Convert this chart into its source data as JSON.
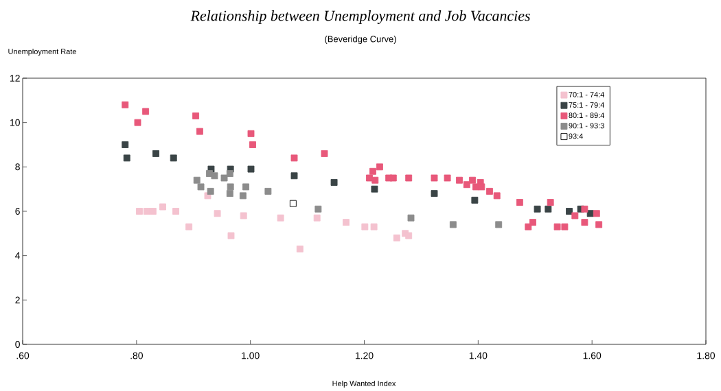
{
  "chart_data": {
    "type": "scatter",
    "title": "Relationship between Unemployment and Job Vacancies",
    "subtitle": "(Beveridge Curve)",
    "xlabel": "Help Wanted Index",
    "ylabel": "Unemployment Rate",
    "xlim": [
      0.6,
      1.8
    ],
    "xticks": [
      {
        "value": 0.6,
        "label": ".60"
      },
      {
        "value": 0.8,
        "label": ".80"
      },
      {
        "value": 1.0,
        "label": "1.00"
      },
      {
        "value": 1.2,
        "label": "1.20"
      },
      {
        "value": 1.4,
        "label": "1.40"
      },
      {
        "value": 1.6,
        "label": "1.60"
      },
      {
        "value": 1.8,
        "label": "1.80"
      }
    ],
    "ylim": [
      0,
      12
    ],
    "yticks": [
      0,
      2,
      4,
      6,
      8,
      10,
      12
    ],
    "grid": false,
    "legend": "top right",
    "marker": "square",
    "series": [
      {
        "name": "70:1 - 74:4",
        "color": "#f4c2cf",
        "x": [
          0.805,
          0.818,
          0.829,
          0.846,
          0.869,
          0.892,
          0.925,
          0.942,
          0.966,
          0.988,
          1.053,
          1.087,
          1.117,
          1.168,
          1.201,
          1.217,
          1.257,
          1.272,
          1.278
        ],
        "values": [
          6.0,
          6.0,
          6.0,
          6.2,
          6.0,
          5.3,
          6.7,
          5.9,
          4.9,
          5.8,
          5.7,
          4.3,
          5.7,
          5.5,
          5.3,
          5.3,
          4.8,
          5.0,
          4.9
        ]
      },
      {
        "name": "75:1 - 79:4",
        "color": "#3a4446",
        "x": [
          0.78,
          0.783,
          0.834,
          0.865,
          0.931,
          0.965,
          1.001,
          1.077,
          1.147,
          1.218,
          1.323,
          1.394,
          1.504,
          1.523,
          1.56,
          1.58,
          1.597
        ],
        "values": [
          9.0,
          8.4,
          8.6,
          8.4,
          7.9,
          7.9,
          7.9,
          7.6,
          7.3,
          7.0,
          6.8,
          6.5,
          6.1,
          6.1,
          6.0,
          6.1,
          5.9
        ]
      },
      {
        "name": "80:1 - 89:4",
        "color": "#e8587a",
        "x": [
          0.78,
          0.802,
          0.816,
          0.904,
          0.911,
          1.001,
          1.004,
          1.077,
          1.13,
          1.227,
          1.215,
          1.209,
          1.219,
          1.243,
          1.251,
          1.278,
          1.323,
          1.346,
          1.367,
          1.38,
          1.39,
          1.396,
          1.404,
          1.406,
          1.42,
          1.433,
          1.473,
          1.527,
          1.488,
          1.496,
          1.539,
          1.552,
          1.57,
          1.587,
          1.587,
          1.608,
          1.612
        ],
        "values": [
          10.8,
          10.0,
          10.5,
          10.3,
          9.6,
          9.5,
          9.0,
          8.4,
          8.6,
          8.0,
          7.8,
          7.5,
          7.4,
          7.5,
          7.5,
          7.5,
          7.5,
          7.5,
          7.4,
          7.2,
          7.4,
          7.1,
          7.3,
          7.1,
          6.9,
          6.7,
          6.4,
          6.4,
          5.3,
          5.5,
          5.3,
          5.3,
          5.8,
          6.1,
          5.5,
          5.9,
          5.4
        ]
      },
      {
        "name": "90:1 - 93:3",
        "color": "#8c8c8c",
        "x": [
          0.906,
          0.913,
          0.928,
          0.937,
          0.93,
          0.954,
          0.965,
          0.964,
          0.964,
          0.992,
          0.987,
          1.031,
          1.119,
          1.282,
          1.356,
          1.436
        ],
        "values": [
          7.4,
          7.1,
          7.7,
          7.6,
          6.9,
          7.5,
          7.1,
          6.8,
          7.7,
          7.1,
          6.7,
          6.9,
          6.1,
          5.7,
          5.4,
          5.4
        ]
      },
      {
        "name": "93:4",
        "color": "#ffffff",
        "x": [
          1.075
        ],
        "values": [
          6.35
        ]
      }
    ]
  }
}
